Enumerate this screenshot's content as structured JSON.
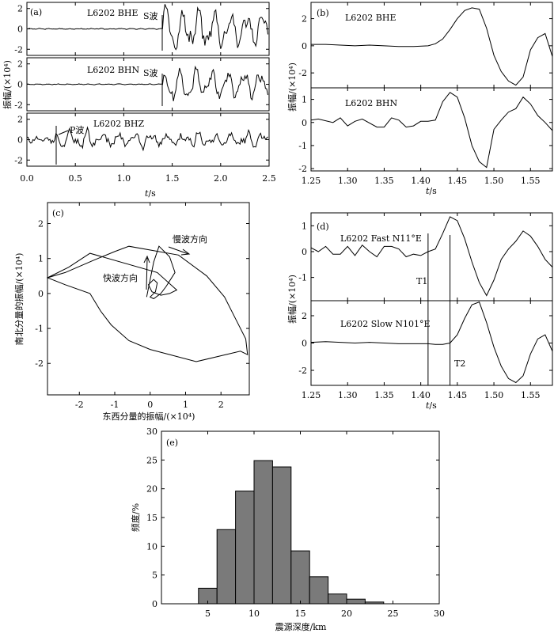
{
  "chart_data": [
    {
      "id": "a",
      "type": "line",
      "panel_label": "(a)",
      "x_range": [
        0,
        2.5
      ],
      "x_ticks": [
        "0.0",
        "0.5",
        "1.0",
        "1.5",
        "2.0",
        "2.5"
      ],
      "x_tick_values": [
        0,
        0.5,
        1.0,
        1.5,
        2.0,
        2.5
      ],
      "xlabel_italic": "t",
      "xlabel_unit": "/s",
      "ylabel": "振幅/(×10⁴)",
      "traces": [
        {
          "name": "L6202  BHE",
          "ylim": [
            -2.6,
            2.6
          ],
          "yticks": [
            "2",
            "0",
            "-2"
          ],
          "ytick_values": [
            2,
            0,
            -2
          ],
          "phase_label": "S波",
          "phase_time": 1.4,
          "onset": 1.4,
          "noise": 0.06,
          "amp": 2.4,
          "seed": 3
        },
        {
          "name": "L6202  BHN",
          "ylim": [
            -2.6,
            2.6
          ],
          "yticks": [
            "2",
            "0",
            "-2"
          ],
          "ytick_values": [
            2,
            0,
            -2
          ],
          "phase_label": "S波",
          "phase_time": 1.4,
          "onset": 1.4,
          "noise": 0.05,
          "amp": 1.8,
          "seed": 7
        },
        {
          "name": "L6202  BHZ",
          "ylim": [
            -2.6,
            2.6
          ],
          "yticks": [
            "2",
            "0",
            "-2"
          ],
          "ytick_values": [
            2,
            0,
            -2
          ],
          "phase_label": "P波",
          "phase_time": 0.3,
          "onset": 0.3,
          "noise": 0.4,
          "amp": 1.0,
          "seed": 11
        }
      ]
    },
    {
      "id": "b",
      "type": "line",
      "panel_label": "(b)",
      "x_range": [
        1.25,
        1.58
      ],
      "x_ticks": [
        "1.25",
        "1.30",
        "1.35",
        "1.40",
        "1.45",
        "1.50",
        "1.55"
      ],
      "x_tick_values": [
        1.25,
        1.3,
        1.35,
        1.4,
        1.45,
        1.5,
        1.55
      ],
      "xlabel_italic": "t",
      "xlabel_unit": "/s",
      "ylabel": "振幅/(×10⁴)",
      "traces": [
        {
          "name": "L6202  BHE",
          "ylim": [
            -3.1,
            3.2
          ],
          "yticks": [
            "2",
            "0",
            "-2"
          ],
          "ytick_values": [
            2,
            0,
            -2
          ],
          "x": [
            1.25,
            1.27,
            1.29,
            1.31,
            1.33,
            1.35,
            1.37,
            1.39,
            1.41,
            1.42,
            1.43,
            1.44,
            1.45,
            1.46,
            1.47,
            1.48,
            1.49,
            1.5,
            1.51,
            1.52,
            1.53,
            1.54,
            1.55,
            1.56,
            1.57,
            1.58
          ],
          "y": [
            0.1,
            0.1,
            0.05,
            0.0,
            0.05,
            0.0,
            -0.05,
            -0.05,
            0.0,
            0.15,
            0.5,
            1.2,
            2.0,
            2.6,
            2.8,
            2.7,
            1.3,
            -0.7,
            -1.9,
            -2.6,
            -2.9,
            -2.3,
            -0.3,
            0.6,
            0.9,
            -0.8
          ]
        },
        {
          "name": "L6202  BHN",
          "ylim": [
            -2.1,
            1.5
          ],
          "yticks": [
            "1",
            "0",
            "-1",
            "-2"
          ],
          "ytick_values": [
            1,
            0,
            -1,
            -2
          ],
          "x": [
            1.25,
            1.26,
            1.28,
            1.29,
            1.3,
            1.31,
            1.32,
            1.34,
            1.35,
            1.36,
            1.37,
            1.38,
            1.39,
            1.4,
            1.41,
            1.42,
            1.43,
            1.44,
            1.45,
            1.46,
            1.47,
            1.48,
            1.49,
            1.5,
            1.51,
            1.52,
            1.53,
            1.54,
            1.55,
            1.56,
            1.57,
            1.58
          ],
          "y": [
            0.1,
            0.15,
            0.0,
            0.2,
            -0.15,
            0.05,
            0.15,
            -0.2,
            -0.2,
            0.2,
            0.1,
            -0.2,
            -0.15,
            0.05,
            0.05,
            0.1,
            0.9,
            1.3,
            1.1,
            0.2,
            -1.0,
            -1.7,
            -1.95,
            -0.3,
            0.1,
            0.45,
            0.6,
            1.1,
            0.8,
            0.3,
            0.0,
            -0.35
          ]
        }
      ]
    },
    {
      "id": "c",
      "type": "line",
      "panel_label": "(c)",
      "x_range": [
        -2.9,
        2.8
      ],
      "y_range": [
        -2.9,
        2.6
      ],
      "x_ticks": [
        "-2",
        "-1",
        "0",
        "1",
        "2"
      ],
      "x_tick_values": [
        -2,
        -1,
        0,
        1,
        2
      ],
      "y_ticks": [
        "2",
        "1",
        "0",
        "-1",
        "-2"
      ],
      "y_tick_values": [
        2,
        1,
        0,
        -1,
        -2
      ],
      "xlabel": "东西分量的振幅/(×10⁴)",
      "ylabel": "南北分量的振幅/(×10⁴)",
      "annotations": {
        "fast": "快波方向",
        "slow": "慢波方向"
      },
      "x": [
        -2.9,
        -2.4,
        -1.6,
        -1.0,
        -0.6,
        0.8,
        1.6,
        2.1,
        2.4,
        2.7,
        2.75,
        2.55,
        1.3,
        0.0,
        -0.6,
        -1.1,
        -1.4,
        -1.7,
        -2.4,
        -2.9,
        -2.3,
        -1.7,
        0.2,
        0.75,
        0.55,
        0.3,
        0.05,
        -0.05,
        0.1,
        0.2,
        0.15,
        0.0,
        0.1,
        0.3,
        0.45,
        0.7,
        0.55,
        0.25,
        0.1,
        -0.1
      ],
      "y": [
        0.45,
        0.6,
        0.95,
        1.2,
        1.35,
        1.1,
        0.5,
        -0.1,
        -0.7,
        -1.3,
        -1.75,
        -1.65,
        -1.95,
        -1.6,
        -1.35,
        -0.9,
        -0.5,
        0.0,
        0.25,
        0.45,
        0.75,
        1.15,
        0.6,
        0.1,
        0.0,
        -0.05,
        0.05,
        0.25,
        0.4,
        0.3,
        0.05,
        -0.1,
        -0.15,
        0.0,
        0.2,
        0.6,
        1.05,
        1.35,
        0.9,
        -0.1
      ]
    },
    {
      "id": "d",
      "type": "line",
      "panel_label": "(d)",
      "x_range": [
        1.25,
        1.58
      ],
      "x_ticks": [
        "1.25",
        "1.30",
        "1.35",
        "1.40",
        "1.45",
        "1.50",
        "1.55"
      ],
      "x_tick_values": [
        1.25,
        1.3,
        1.35,
        1.4,
        1.45,
        1.5,
        1.55
      ],
      "xlabel_italic": "t",
      "xlabel_unit": "/s",
      "ylabel": "振幅/(×10⁴)",
      "markers": [
        {
          "label": "T1",
          "t": 1.41
        },
        {
          "label": "T2",
          "t": 1.44
        }
      ],
      "traces": [
        {
          "name": "L6202  Fast  N11°E",
          "ylim": [
            -1.9,
            1.5
          ],
          "yticks": [
            "1",
            "0",
            "-1"
          ],
          "ytick_values": [
            1,
            0,
            -1
          ],
          "x": [
            1.25,
            1.26,
            1.27,
            1.28,
            1.29,
            1.3,
            1.31,
            1.32,
            1.33,
            1.34,
            1.35,
            1.36,
            1.37,
            1.38,
            1.39,
            1.4,
            1.41,
            1.42,
            1.43,
            1.44,
            1.45,
            1.46,
            1.47,
            1.48,
            1.49,
            1.5,
            1.51,
            1.52,
            1.53,
            1.54,
            1.55,
            1.56,
            1.57,
            1.58
          ],
          "y": [
            0.15,
            0.0,
            0.2,
            -0.1,
            -0.1,
            0.2,
            -0.15,
            0.25,
            0.0,
            -0.2,
            0.2,
            0.2,
            0.1,
            -0.2,
            -0.1,
            -0.15,
            0.0,
            0.1,
            0.7,
            1.35,
            1.2,
            0.5,
            -0.4,
            -1.2,
            -1.7,
            -1.1,
            -0.3,
            0.1,
            0.4,
            0.8,
            0.6,
            0.2,
            -0.3,
            -0.6
          ]
        },
        {
          "name": "L6202  Slow  N101°E",
          "ylim": [
            -3.1,
            3.1
          ],
          "yticks": [
            "2",
            "0",
            "-2"
          ],
          "ytick_values": [
            2,
            0,
            -2
          ],
          "x": [
            1.25,
            1.27,
            1.29,
            1.31,
            1.33,
            1.35,
            1.37,
            1.39,
            1.41,
            1.42,
            1.43,
            1.44,
            1.45,
            1.46,
            1.47,
            1.48,
            1.49,
            1.5,
            1.51,
            1.52,
            1.53,
            1.54,
            1.55,
            1.56,
            1.57,
            1.58
          ],
          "y": [
            0.05,
            0.1,
            0.05,
            0.0,
            0.05,
            0.0,
            -0.05,
            -0.05,
            -0.05,
            -0.1,
            -0.1,
            0.0,
            0.6,
            1.8,
            2.8,
            3.0,
            1.5,
            -0.3,
            -1.7,
            -2.6,
            -2.9,
            -2.4,
            -0.8,
            0.3,
            0.6,
            -0.6
          ]
        }
      ]
    },
    {
      "id": "e",
      "type": "bar",
      "panel_label": "(e)",
      "bin_edges": [
        4,
        6,
        8,
        10,
        12,
        14,
        16,
        18,
        20,
        22,
        24
      ],
      "values": [
        2.7,
        12.9,
        19.6,
        24.9,
        23.8,
        9.2,
        4.7,
        1.7,
        0.8,
        0.3
      ],
      "x_range": [
        0,
        30
      ],
      "y_range": [
        0,
        30
      ],
      "x_ticks": [
        "5",
        "10",
        "15",
        "20",
        "25",
        "30"
      ],
      "x_tick_values": [
        5,
        10,
        15,
        20,
        25,
        30
      ],
      "y_ticks": [
        "0",
        "5",
        "10",
        "15",
        "20",
        "25",
        "30"
      ],
      "y_tick_values": [
        0,
        5,
        10,
        15,
        20,
        25,
        30
      ],
      "xlabel": "震源深度/km",
      "ylabel": "频度/%"
    }
  ]
}
